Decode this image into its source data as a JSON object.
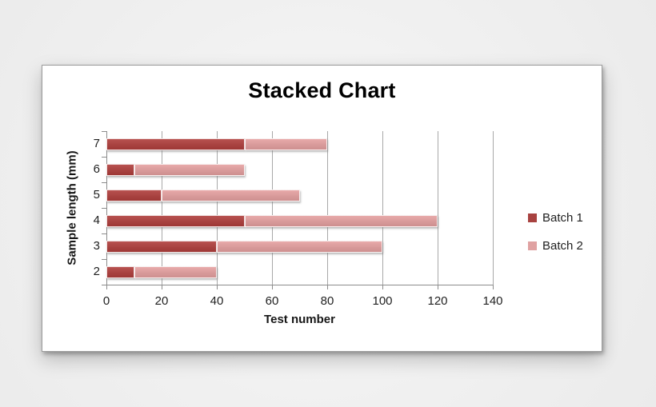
{
  "chart_data": {
    "type": "bar",
    "orientation": "horizontal",
    "stacked": true,
    "title": "Stacked Chart",
    "xlabel": "Test number",
    "ylabel": "Sample length (mm)",
    "categories": [
      "7",
      "6",
      "5",
      "4",
      "3",
      "2"
    ],
    "series": [
      {
        "name": "Batch 1",
        "color": "#a84240",
        "values": [
          50,
          10,
          20,
          50,
          40,
          10
        ]
      },
      {
        "name": "Batch 2",
        "color": "#d89a9a",
        "values": [
          30,
          40,
          50,
          70,
          60,
          30
        ]
      }
    ],
    "totals": [
      80,
      50,
      70,
      120,
      100,
      40
    ],
    "xlim": [
      0,
      140
    ],
    "xticks": [
      0,
      20,
      40,
      60,
      80,
      100,
      120,
      140
    ],
    "grid": "vertical-gridlines-on",
    "legend_position": "right"
  },
  "colors": {
    "batch1": "#a84240",
    "batch2": "#d89a9a",
    "gridline": "#a8a8a8",
    "axis": "#8c8c8c",
    "card_background": "#ffffff",
    "page_background": "#f0f0f0"
  }
}
